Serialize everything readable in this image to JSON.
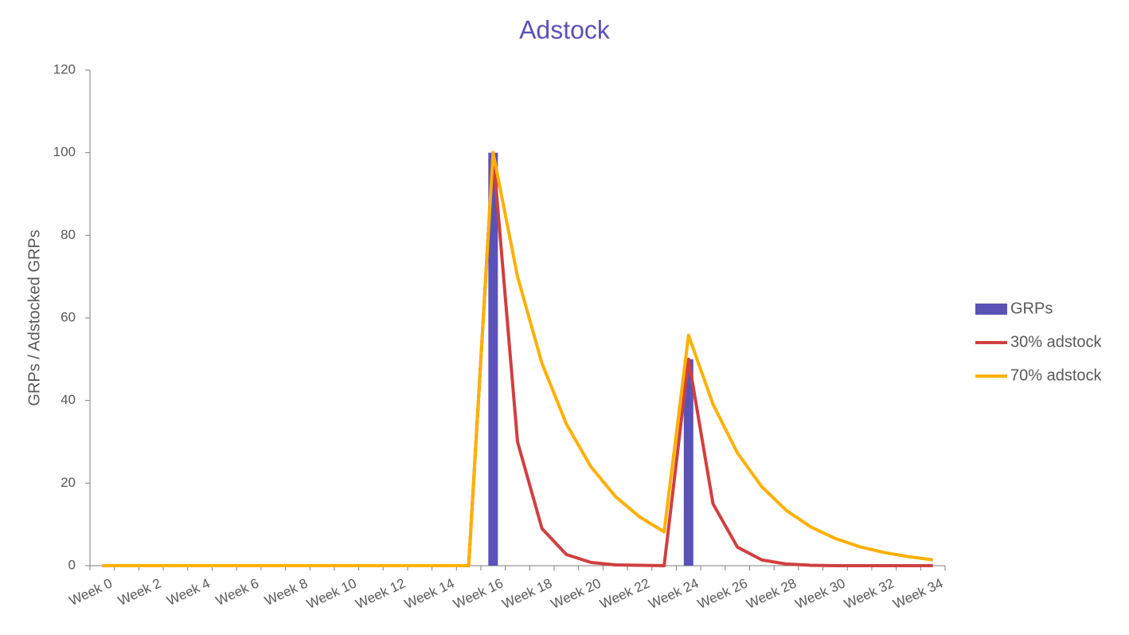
{
  "chart_data": {
    "type": "bar",
    "title": "Adstock",
    "y_label": "GRPs / Adstocked GRPs",
    "categories": [
      "Week 0",
      null,
      "Week 2",
      null,
      "Week 4",
      null,
      "Week 6",
      null,
      "Week 8",
      null,
      "Week 10",
      null,
      "Week 12",
      null,
      "Week 14",
      null,
      "Week 16",
      null,
      "Week 18",
      null,
      "Week 20",
      null,
      "Week 22",
      null,
      "Week 24",
      null,
      "Week 26",
      null,
      "Week 28",
      null,
      "Week 30",
      null,
      "Week 32",
      null,
      "Week 34"
    ],
    "series": [
      {
        "name": "GRPs",
        "type": "bar",
        "color": "#5b52b8",
        "values": [
          0,
          0,
          0,
          0,
          0,
          0,
          0,
          0,
          0,
          0,
          0,
          0,
          0,
          0,
          0,
          0,
          100,
          0,
          0,
          0,
          0,
          0,
          0,
          0,
          50,
          0,
          0,
          0,
          0,
          0,
          0,
          0,
          0,
          0,
          0
        ]
      },
      {
        "name": "30% adstock",
        "type": "line",
        "color": "#d13f3f",
        "values": [
          0,
          0,
          0,
          0,
          0,
          0,
          0,
          0,
          0,
          0,
          0,
          0,
          0,
          0,
          0,
          0,
          100,
          30,
          9,
          2.7,
          0.8,
          0.2,
          0.1,
          0,
          50,
          15,
          4.5,
          1.4,
          0.4,
          0.1,
          0,
          0,
          0,
          0,
          0
        ]
      },
      {
        "name": "70% adstock",
        "type": "line",
        "color": "#ffb000",
        "values": [
          0,
          0,
          0,
          0,
          0,
          0,
          0,
          0,
          0,
          0,
          0,
          0,
          0,
          0,
          0,
          0,
          100,
          70,
          49,
          34.3,
          24,
          16.8,
          11.8,
          8.2,
          55.8,
          39.1,
          27.3,
          19.1,
          13.4,
          9.4,
          6.6,
          4.6,
          3.2,
          2.2,
          1.4
        ]
      }
    ],
    "ylim": [
      0,
      120
    ],
    "yticks": [
      0,
      20,
      40,
      60,
      80,
      100,
      120
    ],
    "grid": false,
    "legend": "right"
  }
}
